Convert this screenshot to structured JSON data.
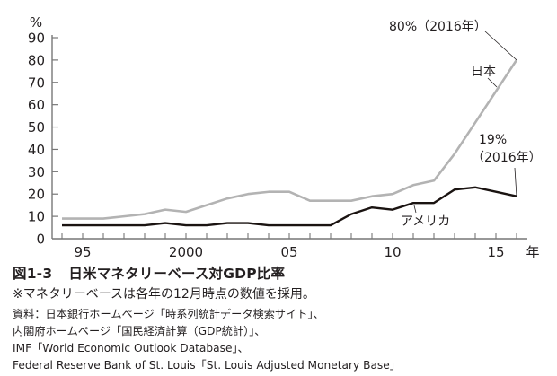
{
  "chart_data": {
    "type": "line",
    "title": "日米マネタリーベース対GDP比率",
    "figure_number": "図1-3",
    "xlabel": "年",
    "ylabel": "%",
    "ylim": [
      0,
      90
    ],
    "yticks": [
      0,
      10,
      20,
      30,
      40,
      50,
      60,
      70,
      80,
      90
    ],
    "x": [
      1994,
      1995,
      1996,
      1997,
      1998,
      1999,
      2000,
      2001,
      2002,
      2003,
      2004,
      2005,
      2006,
      2007,
      2008,
      2009,
      2010,
      2011,
      2012,
      2013,
      2014,
      2015,
      2016
    ],
    "xtick_labels": [
      {
        "year": 1995,
        "label": "95"
      },
      {
        "year": 2000,
        "label": "2000"
      },
      {
        "year": 2005,
        "label": "05"
      },
      {
        "year": 2010,
        "label": "10"
      },
      {
        "year": 2015,
        "label": "15"
      }
    ],
    "grid": false,
    "series": [
      {
        "name": "日本",
        "color": "#b3b3b3",
        "values": [
          9,
          9,
          9,
          10,
          11,
          13,
          12,
          15,
          18,
          20,
          21,
          21,
          17,
          17,
          17,
          19,
          20,
          24,
          26,
          38,
          52,
          66,
          80
        ]
      },
      {
        "name": "アメリカ",
        "color": "#1a1311",
        "values": [
          6,
          6,
          6,
          6,
          6,
          7,
          6,
          6,
          7,
          7,
          6,
          6,
          6,
          6,
          11,
          14,
          13,
          16,
          16,
          22,
          23,
          21,
          19
        ]
      }
    ],
    "annotations": [
      {
        "text": "80%（2016年）",
        "series": "日本",
        "year": 2016,
        "value": 80
      },
      {
        "text_line1": "19%",
        "text_line2": "（2016年）",
        "series": "アメリカ",
        "year": 2016,
        "value": 19
      }
    ]
  },
  "caption": {
    "figure_number": "図1-3",
    "title": "日米マネタリーベース対GDP比率",
    "note": "※マネタリーベースは各年の12月時点の数値を採用。",
    "sources": [
      "資料：日本銀行ホームページ「時系列統計データ検索サイト」、",
      "内閣府ホームページ「国民経済計算（GDP統計）」、",
      "IMF「World Economic Outlook Database」、",
      "Federal Reserve Bank of St. Louis「St. Louis Adjusted Monetary Base」"
    ]
  },
  "labels": {
    "y_unit": "%",
    "x_unit": "年",
    "japan": "日本",
    "us": "アメリカ",
    "japan_end": "80%（2016年）",
    "us_end_line1": "19%",
    "us_end_line2": "（2016年）"
  }
}
